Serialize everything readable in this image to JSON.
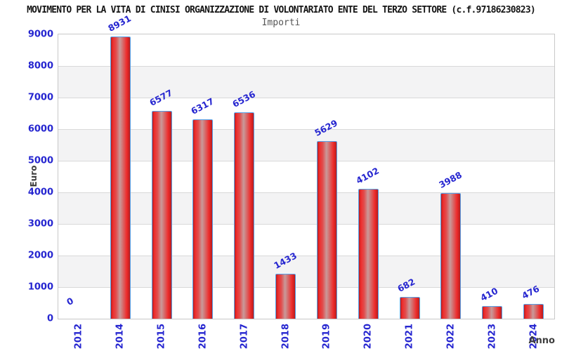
{
  "chart_data": {
    "type": "bar",
    "title": "MOVIMENTO PER LA VITA DI CINISI ORGANIZZAZIONE DI VOLONTARIATO ENTE DEL TERZO SETTORE (c.f.97186230823)",
    "subtitle": "Importi",
    "categories": [
      "2012",
      "2014",
      "2015",
      "2016",
      "2017",
      "2018",
      "2019",
      "2020",
      "2021",
      "2022",
      "2023",
      "2024"
    ],
    "values": [
      0,
      8931,
      6577,
      6317,
      6536,
      1433,
      5629,
      4102,
      682,
      3988,
      410,
      476
    ],
    "xlabel": "Anno",
    "ylabel": "Euro",
    "ylim": [
      0,
      9000
    ],
    "ytick_step": 1000,
    "ytick_labels": [
      "0",
      "1000",
      "2000",
      "3000",
      "4000",
      "5000",
      "6000",
      "7000",
      "8000",
      "9000"
    ],
    "grid": true,
    "legend_position": "none",
    "band_fill": "alternating-horizontal",
    "value_label_rotation_deg": -28,
    "xtick_rotation_deg": -90,
    "colors": {
      "label_blue": "#2626d0",
      "bar_border": "#55a0e8",
      "bar_red": "#ee2c2c",
      "bar_edge": "#b81d1d",
      "bar_highlight": "#c99a9a",
      "band_gray": "#f3f3f4",
      "gridline": "#d9d9d9",
      "plot_border": "#c8c8c8",
      "title_color": "#151515",
      "subtitle_color": "#555555",
      "axis_title_color": "#3d3d3d"
    }
  }
}
